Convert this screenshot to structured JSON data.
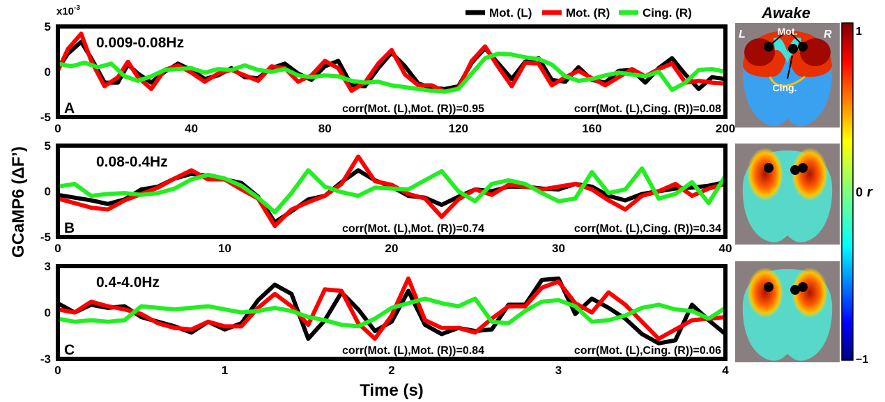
{
  "figure": {
    "ylabel": "GCaMP6 (ΔF’)",
    "xlabel": "Time (s)",
    "y_scale_note": "x10",
    "y_scale_exp": "-3",
    "legend": [
      {
        "name": "Mot. (L)",
        "color": "#000000"
      },
      {
        "name": "Mot. (R)",
        "color": "#ff0000"
      },
      {
        "name": "Cing. (R)",
        "color": "#22ee22"
      }
    ],
    "map_title": "Awake",
    "colorbar": {
      "max": "1",
      "mid": "0",
      "min": "−1",
      "label": "r"
    },
    "map_labels": {
      "left": "L",
      "right": "R",
      "motor": "Mot.",
      "cingulate": "Cing."
    }
  },
  "chart_data": [
    {
      "type": "line",
      "panel": "A",
      "band": "0.009-0.08Hz",
      "xlim": [
        0,
        200
      ],
      "ylim": [
        -5,
        5
      ],
      "xticks": [
        0,
        40,
        80,
        120,
        160,
        200
      ],
      "yticks": [
        -5,
        0,
        5
      ],
      "annotations": [
        "corr(Mot. (L),Mot. (R))=0.95",
        "corr(Mot. (L),Cing. (R))=0.08"
      ],
      "series": [
        {
          "name": "Mot. (L)",
          "color": "#000000",
          "x": [
            0,
            3,
            7,
            10,
            14,
            18,
            21,
            24,
            28,
            32,
            36,
            40,
            44,
            48,
            52,
            56,
            60,
            64,
            68,
            72,
            76,
            80,
            84,
            88,
            92,
            96,
            100,
            104,
            108,
            112,
            116,
            120,
            124,
            128,
            132,
            136,
            140,
            144,
            148,
            152,
            156,
            160,
            164,
            168,
            172,
            176,
            180,
            184,
            188,
            192,
            196,
            200
          ],
          "y": [
            0.3,
            2.0,
            3.3,
            1.5,
            -1.2,
            -1.2,
            0.8,
            -0.2,
            -1.2,
            0,
            0.9,
            0.2,
            -0.8,
            -0.4,
            0.4,
            -0.6,
            -0.7,
            0.4,
            0.9,
            -0.2,
            -0.9,
            0.6,
            1.2,
            -1.5,
            -1.6,
            0.4,
            2.1,
            0.6,
            -1.3,
            -1.8,
            -1.9,
            -1.6,
            1.0,
            2.6,
            0.9,
            -0.8,
            1.1,
            1.5,
            -0.9,
            -1.1,
            0.5,
            -0.9,
            -1.2,
            0.1,
            0.2,
            -1.2,
            0.4,
            1.5,
            -0.3,
            -1.9,
            -0.6,
            -0.8
          ]
        },
        {
          "name": "Mot. (R)",
          "color": "#ff0000",
          "x": [
            0,
            3,
            7,
            10,
            14,
            18,
            21,
            24,
            28,
            32,
            36,
            40,
            44,
            48,
            52,
            56,
            60,
            64,
            68,
            72,
            76,
            80,
            84,
            88,
            92,
            96,
            100,
            104,
            108,
            112,
            116,
            120,
            124,
            128,
            132,
            136,
            140,
            144,
            148,
            152,
            156,
            160,
            164,
            168,
            172,
            176,
            180,
            184,
            188,
            192,
            196,
            200
          ],
          "y": [
            0.1,
            2.5,
            4.2,
            1.2,
            -1.6,
            -0.6,
            1.1,
            -0.6,
            -1.9,
            0.2,
            0.7,
            -0.1,
            -1.1,
            -0.2,
            0.2,
            -0.4,
            -1.0,
            0.6,
            0.4,
            -1.1,
            -0.4,
            1.2,
            0.4,
            -2.1,
            -1.2,
            0.9,
            2.4,
            -0.3,
            -1.5,
            -1.5,
            -2.2,
            -1.8,
            1.2,
            2.8,
            0.5,
            -1.6,
            1.0,
            0.9,
            -1.5,
            -0.6,
            0.1,
            -0.7,
            -1.5,
            -0.6,
            0.3,
            -0.5,
            0.3,
            0.9,
            -1.2,
            -1.0,
            -1.2,
            -1.3
          ]
        },
        {
          "name": "Cing. (R)",
          "color": "#22ee22",
          "x": [
            0,
            4,
            8,
            12,
            16,
            20,
            24,
            28,
            32,
            36,
            40,
            44,
            48,
            52,
            56,
            60,
            64,
            68,
            72,
            76,
            80,
            84,
            88,
            92,
            96,
            100,
            104,
            108,
            112,
            116,
            120,
            124,
            128,
            132,
            136,
            140,
            144,
            148,
            152,
            156,
            160,
            164,
            168,
            172,
            176,
            180,
            184,
            188,
            192,
            196,
            200
          ],
          "y": [
            0.9,
            0.6,
            1.0,
            0.5,
            0.9,
            -0.5,
            -1.0,
            -0.5,
            0.2,
            0.3,
            0.4,
            -0.1,
            0.3,
            0.2,
            0.7,
            0.2,
            0.0,
            0.3,
            -0.4,
            -0.6,
            -0.4,
            -0.5,
            -1.0,
            -1.2,
            -1.1,
            -1.5,
            -1.7,
            -1.9,
            -2.1,
            -2.2,
            -1.9,
            -0.2,
            1.5,
            2.0,
            1.9,
            1.6,
            1.4,
            0.8,
            -0.5,
            -1.0,
            -0.8,
            -0.4,
            -0.1,
            -0.3,
            -0.5,
            0.0,
            -2.0,
            -1.2,
            0.2,
            0.3,
            0.0
          ]
        }
      ]
    },
    {
      "type": "line",
      "panel": "B",
      "band": "0.08-0.4Hz",
      "xlim": [
        0,
        40
      ],
      "ylim": [
        -5,
        5
      ],
      "xticks": [
        0,
        10,
        20,
        30,
        40
      ],
      "yticks": [
        -5,
        0,
        5
      ],
      "annotations": [
        "corr(Mot. (L),Mot. (R))=0.74",
        "corr(Mot. (L),Cing. (R))=0.34"
      ],
      "series": [
        {
          "name": "Mot. (L)",
          "color": "#000000",
          "x": [
            0,
            1,
            2,
            3,
            4,
            5,
            6,
            7,
            8,
            9,
            10,
            11,
            12,
            13,
            14,
            15,
            16,
            17,
            18,
            19,
            20,
            21,
            22,
            23,
            24,
            25,
            26,
            27,
            28,
            29,
            30,
            31,
            32,
            33,
            34,
            35,
            36,
            37,
            38,
            39,
            40
          ],
          "y": [
            -0.4,
            -0.7,
            -1.0,
            -1.4,
            -0.9,
            0.2,
            0.5,
            1.4,
            1.9,
            1.7,
            1.3,
            0.9,
            -0.6,
            -3.4,
            -2.2,
            -0.9,
            -0.5,
            1.0,
            2.3,
            1.2,
            0.5,
            -0.5,
            -0.7,
            -1.5,
            -0.6,
            0.2,
            0.0,
            0.5,
            0.5,
            0.3,
            0.2,
            0.8,
            0.5,
            -0.5,
            -1.0,
            -0.3,
            0.0,
            0.3,
            0.4,
            0.6,
            1.0
          ]
        },
        {
          "name": "Mot. (R)",
          "color": "#ff0000",
          "x": [
            0,
            1,
            2,
            3,
            4,
            5,
            6,
            7,
            8,
            9,
            10,
            11,
            12,
            13,
            14,
            15,
            16,
            17,
            18,
            19,
            20,
            21,
            22,
            23,
            24,
            25,
            26,
            27,
            28,
            29,
            30,
            31,
            32,
            33,
            34,
            35,
            36,
            37,
            38,
            39,
            40
          ],
          "y": [
            -0.8,
            -1.3,
            -1.8,
            -2.0,
            -1.0,
            -0.3,
            0.4,
            1.4,
            2.3,
            1.3,
            1.3,
            0.2,
            -0.8,
            -3.8,
            -2.0,
            -1.2,
            -0.5,
            0.8,
            3.8,
            1.1,
            0.7,
            -0.3,
            -0.8,
            -2.8,
            -0.9,
            0.2,
            -0.4,
            0.7,
            0.5,
            0.2,
            0.5,
            0.8,
            0.2,
            -1.0,
            -2.0,
            -0.5,
            0.0,
            0.8,
            -0.5,
            0.3,
            0.8
          ]
        },
        {
          "name": "Cing. (R)",
          "color": "#22ee22",
          "x": [
            0,
            1,
            2,
            3,
            4,
            5,
            6,
            7,
            8,
            9,
            10,
            11,
            12,
            13,
            14,
            15,
            16,
            17,
            18,
            19,
            20,
            21,
            22,
            23,
            24,
            25,
            26,
            27,
            28,
            29,
            30,
            31,
            32,
            33,
            34,
            35,
            36,
            37,
            38,
            39,
            40
          ],
          "y": [
            0.5,
            0.8,
            -0.5,
            -0.3,
            -0.2,
            -0.4,
            -0.2,
            0.3,
            1.3,
            1.8,
            1.4,
            0.6,
            -0.7,
            -2.3,
            -0.2,
            2.3,
            0.5,
            -0.1,
            -0.5,
            0.4,
            0.3,
            0.2,
            1.2,
            2.2,
            0.0,
            -1.1,
            0.8,
            1.2,
            0.8,
            -0.2,
            -1.1,
            -0.8,
            2.1,
            -0.2,
            0.2,
            2.5,
            -0.8,
            -0.3,
            1.0,
            -1.3,
            1.7
          ]
        }
      ]
    },
    {
      "type": "line",
      "panel": "C",
      "band": "0.4-4.0Hz",
      "xlim": [
        0,
        4
      ],
      "ylim": [
        -3,
        3
      ],
      "xticks": [
        0,
        1,
        2,
        3,
        4
      ],
      "yticks": [
        -3,
        0,
        3
      ],
      "annotations": [
        "corr(Mot. (L),Mot. (R))=0.84",
        "corr(Mot. (L),Cing. (R))=0.06"
      ],
      "series": [
        {
          "name": "Mot. (L)",
          "color": "#000000",
          "x": [
            0,
            0.1,
            0.2,
            0.3,
            0.4,
            0.5,
            0.6,
            0.7,
            0.8,
            0.9,
            1.0,
            1.1,
            1.2,
            1.3,
            1.4,
            1.5,
            1.6,
            1.7,
            1.8,
            1.9,
            2.0,
            2.1,
            2.2,
            2.3,
            2.4,
            2.5,
            2.6,
            2.7,
            2.8,
            2.9,
            3.0,
            3.1,
            3.2,
            3.3,
            3.4,
            3.5,
            3.6,
            3.7,
            3.8,
            3.9,
            4.0
          ],
          "y": [
            0.6,
            0.0,
            0.5,
            0.3,
            0.4,
            -0.3,
            -0.6,
            -0.9,
            -1.3,
            -0.6,
            -1.1,
            -0.7,
            0.8,
            1.8,
            1.2,
            -1.7,
            -0.5,
            1.3,
            0.2,
            -1.2,
            -0.6,
            1.4,
            -0.8,
            -1.4,
            -1.0,
            -1.2,
            -1.1,
            0.5,
            0.5,
            2.1,
            2.2,
            -0.1,
            0.9,
            0.3,
            -0.4,
            -1.4,
            -2.0,
            -1.8,
            0.5,
            -0.5,
            -1.4
          ]
        },
        {
          "name": "Mot. (R)",
          "color": "#ff0000",
          "x": [
            0,
            0.1,
            0.2,
            0.3,
            0.4,
            0.5,
            0.6,
            0.7,
            0.8,
            0.9,
            1.0,
            1.1,
            1.2,
            1.3,
            1.4,
            1.5,
            1.6,
            1.7,
            1.8,
            1.9,
            2.0,
            2.1,
            2.2,
            2.3,
            2.4,
            2.5,
            2.6,
            2.7,
            2.8,
            2.9,
            3.0,
            3.1,
            3.2,
            3.3,
            3.4,
            3.5,
            3.6,
            3.7,
            3.8,
            3.9,
            4.0
          ],
          "y": [
            0.2,
            0.0,
            0.7,
            0.4,
            0.2,
            -0.1,
            -0.7,
            -1.0,
            -1.1,
            -0.6,
            -0.9,
            -0.9,
            0.3,
            1.2,
            0.4,
            -0.8,
            1.5,
            1.4,
            -0.7,
            -1.7,
            -0.2,
            2.2,
            -0.5,
            -1.0,
            -1.0,
            -1.3,
            -0.4,
            0.4,
            0.4,
            1.6,
            2.0,
            0.6,
            0.0,
            1.3,
            0.5,
            -0.6,
            -1.7,
            -1.1,
            -0.5,
            -0.4,
            -0.3
          ]
        },
        {
          "name": "Cing. (R)",
          "color": "#22ee22",
          "x": [
            0,
            0.1,
            0.2,
            0.3,
            0.4,
            0.5,
            0.6,
            0.7,
            0.8,
            0.9,
            1.0,
            1.1,
            1.2,
            1.3,
            1.4,
            1.5,
            1.6,
            1.7,
            1.8,
            1.9,
            2.0,
            2.1,
            2.2,
            2.3,
            2.4,
            2.5,
            2.6,
            2.7,
            2.8,
            2.9,
            3.0,
            3.1,
            3.2,
            3.3,
            3.4,
            3.5,
            3.6,
            3.7,
            3.8,
            3.9,
            4.0
          ],
          "y": [
            -0.4,
            -0.6,
            -0.5,
            -0.6,
            -0.5,
            0.4,
            0.3,
            0.2,
            0.3,
            0.4,
            0.2,
            0.0,
            0.1,
            0.3,
            0.1,
            -0.3,
            -0.5,
            -0.8,
            -0.9,
            -0.4,
            0.3,
            0.6,
            0.9,
            0.6,
            0.4,
            0.9,
            -0.6,
            -0.7,
            0.1,
            0.7,
            0.8,
            0.4,
            -0.6,
            -0.5,
            -0.2,
            0.3,
            0.5,
            0.2,
            0.1,
            -0.4,
            0.3
          ]
        }
      ]
    }
  ]
}
